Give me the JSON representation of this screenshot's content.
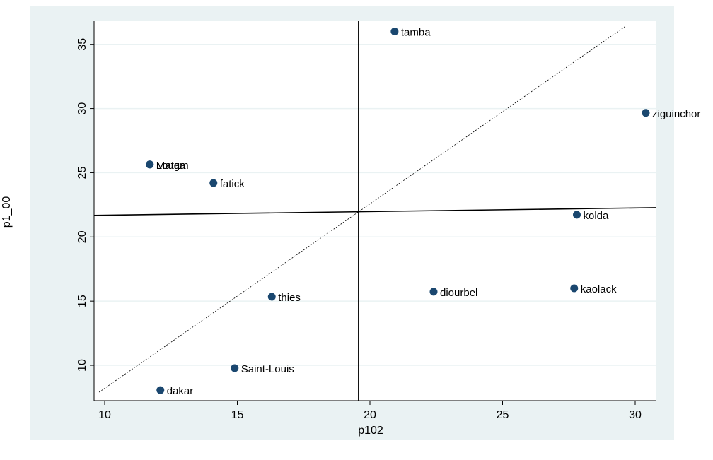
{
  "chart_data": {
    "type": "scatter",
    "xlabel": "p102",
    "ylabel": "p1_00",
    "labels": [
      "tamba",
      "ziguinchor",
      "Louga",
      "Matam",
      "fatick",
      "kolda",
      "thies",
      "diourbel",
      "kaolack",
      "Saint-Louis",
      "dakar"
    ],
    "x": [
      20.93,
      30.4,
      11.7,
      11.7,
      14.1,
      27.8,
      16.3,
      22.4,
      27.7,
      14.9,
      12.1
    ],
    "y": [
      36.0,
      29.66,
      25.64,
      25.64,
      24.2,
      21.73,
      15.34,
      15.73,
      16.0,
      9.78,
      8.07
    ],
    "color": "#1a476f",
    "xlim": [
      9.6,
      30.8
    ],
    "ylim": [
      7.25,
      36.8
    ],
    "xticks": [
      10,
      15,
      20,
      25,
      30
    ],
    "yticks": [
      10,
      15,
      20,
      25,
      30,
      35
    ],
    "grid": true,
    "reference_lines": [
      {
        "style": "solid",
        "x": [
          9.6,
          30.8
        ],
        "y": [
          21.68,
          22.28
        ]
      },
      {
        "style": "solid",
        "x": [
          19.57,
          19.57
        ],
        "y": [
          7.25,
          36.8
        ]
      },
      {
        "style": "dotted",
        "x": [
          9.79,
          29.65
        ],
        "y": [
          7.91,
          36.43
        ]
      }
    ]
  }
}
